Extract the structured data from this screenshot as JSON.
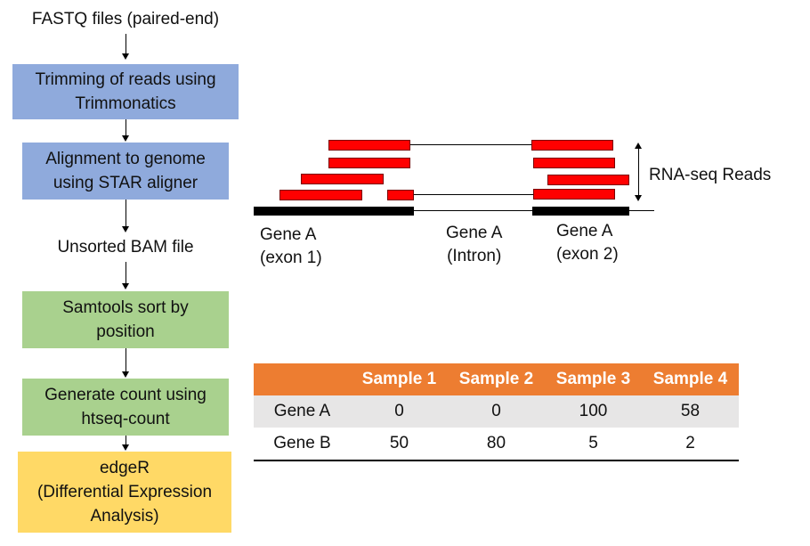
{
  "workflow": {
    "input_label": "FASTQ files (paired-end)",
    "steps": [
      {
        "line1": "Trimming of reads using",
        "line2": "Trimmonatics"
      },
      {
        "line1": "Alignment to genome",
        "line2": "using STAR aligner"
      }
    ],
    "intermediate_label": "Unsorted BAM file",
    "steps2": [
      {
        "line1": "Samtools sort by",
        "line2": "position"
      },
      {
        "line1": "Generate count using",
        "line2": "htseq-count"
      }
    ],
    "final": {
      "line1": "edgeR",
      "line2": "(Differential Expression",
      "line3": "Analysis)"
    }
  },
  "gene_diagram": {
    "reads_label": "RNA-seq Reads",
    "exon1": {
      "line1": "Gene A",
      "line2": "(exon 1)"
    },
    "intron": {
      "line1": "Gene A",
      "line2": "(Intron)"
    },
    "exon2": {
      "line1": "Gene A",
      "line2": "(exon 2)"
    }
  },
  "table": {
    "columns": [
      "",
      "Sample 1",
      "Sample 2",
      "Sample 3",
      "Sample 4"
    ],
    "rows": [
      {
        "gene": "Gene A",
        "values": [
          "0",
          "0",
          "100",
          "58"
        ]
      },
      {
        "gene": "Gene B",
        "values": [
          "50",
          "80",
          "5",
          "2"
        ]
      }
    ]
  },
  "colors": {
    "blue_step": "#8faadc",
    "green_step": "#a9d18e",
    "yellow_step": "#ffd966",
    "read": "#ff0000",
    "table_header": "#ed7d31",
    "table_shade": "#e7e6e6"
  }
}
